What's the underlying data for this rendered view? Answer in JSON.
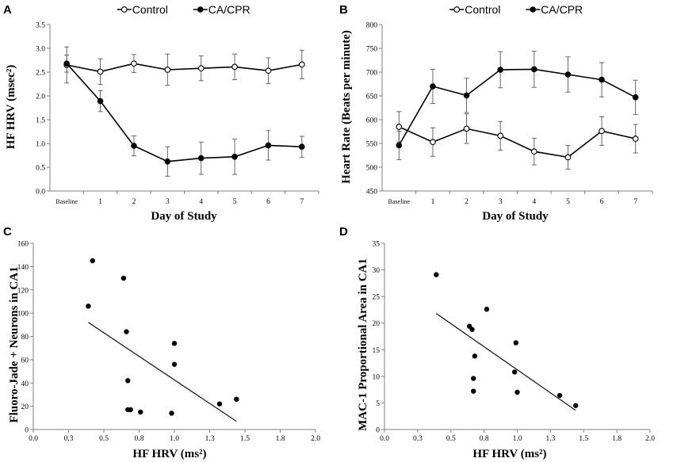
{
  "chart_data": [
    {
      "panel": "A",
      "type": "line",
      "ylabel": "HF HRV (msec²)",
      "xlabel": "Day of Study",
      "categories": [
        "Baseline",
        "1",
        "2",
        "3",
        "4",
        "5",
        "6",
        "7"
      ],
      "ylim": [
        0.0,
        3.5
      ],
      "yticks": [
        "0.0",
        "0.5",
        "1.0",
        "1.5",
        "2.0",
        "2.5",
        "3.0",
        "3.5"
      ],
      "legend": [
        "Control",
        "CA/CPR"
      ],
      "series": [
        {
          "name": "Control",
          "marker": "open",
          "values": [
            2.65,
            2.51,
            2.68,
            2.55,
            2.58,
            2.61,
            2.53,
            2.66
          ],
          "errors": [
            0.38,
            0.27,
            0.19,
            0.33,
            0.26,
            0.27,
            0.27,
            0.3
          ]
        },
        {
          "name": "CA/CPR",
          "marker": "filled",
          "values": [
            2.68,
            1.89,
            0.95,
            0.62,
            0.69,
            0.72,
            0.96,
            0.93
          ],
          "errors": [
            0.18,
            0.22,
            0.21,
            0.31,
            0.34,
            0.37,
            0.31,
            0.22
          ]
        }
      ]
    },
    {
      "panel": "B",
      "type": "line",
      "ylabel": "Heart Rate (Beats per minute)",
      "xlabel": "Day of Study",
      "categories": [
        "Baseline",
        "1",
        "2",
        "3",
        "4",
        "5",
        "6",
        "7"
      ],
      "ylim": [
        450,
        800
      ],
      "yticks": [
        "450",
        "500",
        "550",
        "600",
        "650",
        "700",
        "750",
        "800"
      ],
      "legend": [
        "Control",
        "CA/CPR"
      ],
      "series": [
        {
          "name": "Control",
          "marker": "open",
          "values": [
            585,
            553,
            581,
            566,
            533,
            521,
            576,
            560
          ],
          "errors": [
            32,
            30,
            31,
            30,
            28,
            25,
            30,
            30
          ]
        },
        {
          "name": "CA/CPR",
          "marker": "filled",
          "values": [
            546,
            670,
            651,
            705,
            706,
            695,
            684,
            647
          ],
          "errors": [
            30,
            36,
            36,
            38,
            38,
            37,
            36,
            36
          ]
        }
      ]
    },
    {
      "panel": "C",
      "type": "scatter",
      "ylabel": "Fluoro-Jade + Neurons in CA1",
      "xlabel": "HF HRV (ms²)",
      "xlim": [
        0.0,
        2.0
      ],
      "ylim": [
        0,
        160
      ],
      "xticks": [
        "0.0",
        "0.3",
        "0.5",
        "0.8",
        "1.0",
        "1.3",
        "1.5",
        "1.8",
        "2.0"
      ],
      "yticks": [
        "0",
        "20",
        "40",
        "60",
        "80",
        "100",
        "120",
        "140",
        "160"
      ],
      "x": [
        0.39,
        0.42,
        0.64,
        0.66,
        0.67,
        0.67,
        0.69,
        0.76,
        0.98,
        1.0,
        1.0,
        1.32,
        1.44
      ],
      "y": [
        106,
        145,
        130,
        84,
        42,
        17,
        17,
        15,
        14,
        74,
        56,
        22,
        26
      ],
      "trendline": {
        "x": [
          0.39,
          1.44
        ],
        "y": [
          92,
          7
        ]
      }
    },
    {
      "panel": "D",
      "type": "scatter",
      "ylabel": "MAC-1 Proportional Area in CA1",
      "xlabel": "HF HRV (ms²)",
      "xlim": [
        0.0,
        2.0
      ],
      "ylim": [
        0,
        35
      ],
      "xticks": [
        "0.0",
        "0.3",
        "0.5",
        "0.8",
        "1.0",
        "1.3",
        "1.5",
        "1.8",
        "2.0"
      ],
      "yticks": [
        "0",
        "5",
        "10",
        "15",
        "20",
        "25",
        "30",
        "35"
      ],
      "x": [
        0.39,
        0.64,
        0.66,
        0.67,
        0.67,
        0.68,
        0.77,
        0.98,
        0.99,
        1.0,
        1.32,
        1.44
      ],
      "y": [
        29.1,
        19.4,
        18.8,
        7.2,
        9.6,
        13.8,
        22.6,
        10.8,
        16.3,
        7.0,
        6.4,
        4.5
      ],
      "trendline": {
        "x": [
          0.39,
          1.44
        ],
        "y": [
          21.8,
          3.6
        ]
      }
    }
  ]
}
